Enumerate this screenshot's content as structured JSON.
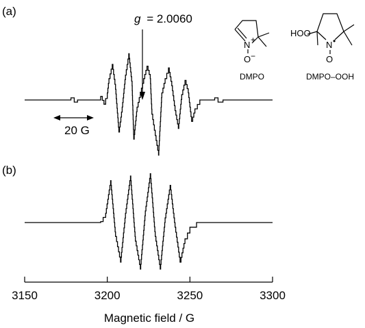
{
  "chart_data": {
    "type": "line",
    "xlabel": "Magnetic field / G",
    "xlim": [
      3150,
      3300
    ],
    "x_ticks": [
      3150,
      3200,
      3250,
      3300
    ],
    "grid": false,
    "panels": [
      {
        "label": "(a)",
        "series": [
          {
            "x": [
              3150,
              3175,
              3178,
              3180,
              3182,
              3185,
              3193,
              3196,
              3198,
              3200,
              3201,
              3203,
              3205,
              3207,
              3209,
              3211,
              3213,
              3215,
              3216,
              3218,
              3220,
              3222,
              3224,
              3226,
              3227,
              3229,
              3231,
              3233,
              3235,
              3237,
              3239,
              3241,
              3243,
              3245,
              3247,
              3249,
              3251,
              3253,
              3256,
              3263,
              3265,
              3267,
              3270,
              3300
            ],
            "y": [
              0,
              0,
              0.06,
              -0.06,
              0,
              0,
              0,
              0.1,
              -0.12,
              0.2,
              0.6,
              1.0,
              0.3,
              -0.9,
              -0.2,
              0.7,
              1.3,
              0.4,
              -1.1,
              -0.2,
              0.2,
              0.6,
              0.95,
              0.6,
              -0.4,
              -1.0,
              -1.55,
              0.2,
              0.6,
              0.9,
              0.4,
              -0.3,
              -0.8,
              0.15,
              0.55,
              0.2,
              -0.6,
              -0.25,
              0,
              0,
              0.06,
              -0.06,
              0,
              0
            ]
          }
        ],
        "annotations": [
          {
            "text_italic": "g",
            "text": "= 2.0060",
            "x": 3222
          },
          {
            "text": "20 G",
            "x_range": [
              3171,
              3191
            ]
          }
        ]
      },
      {
        "label": "(b)",
        "series": [
          {
            "x": [
              3150,
              3190,
              3196,
              3199,
              3202,
              3205,
              3208,
              3211,
              3214,
              3217,
              3220,
              3223,
              3226,
              3229,
              3232,
              3235,
              3238,
              3241,
              3244,
              3247,
              3250,
              3254,
              3260,
              3300
            ],
            "y": [
              0,
              0,
              0.02,
              0.2,
              0.9,
              -0.3,
              -0.85,
              0.2,
              1.0,
              -0.4,
              -1.0,
              0.25,
              1.05,
              -0.3,
              -1.0,
              0.1,
              0.8,
              -0.1,
              -0.85,
              -0.35,
              -0.1,
              0,
              0,
              0
            ]
          }
        ]
      }
    ],
    "legend": "none"
  },
  "structures": [
    {
      "name": "DMPO",
      "atoms": {
        "nitrogen": "N",
        "charge_plus": "+",
        "oxygen": "O",
        "charge_minus": "−"
      }
    },
    {
      "name": "DMPO–OOH",
      "atoms": {
        "hoo": "HOO",
        "nitrogen": "N",
        "radical_dot": "•",
        "oxygen": "O"
      }
    }
  ]
}
